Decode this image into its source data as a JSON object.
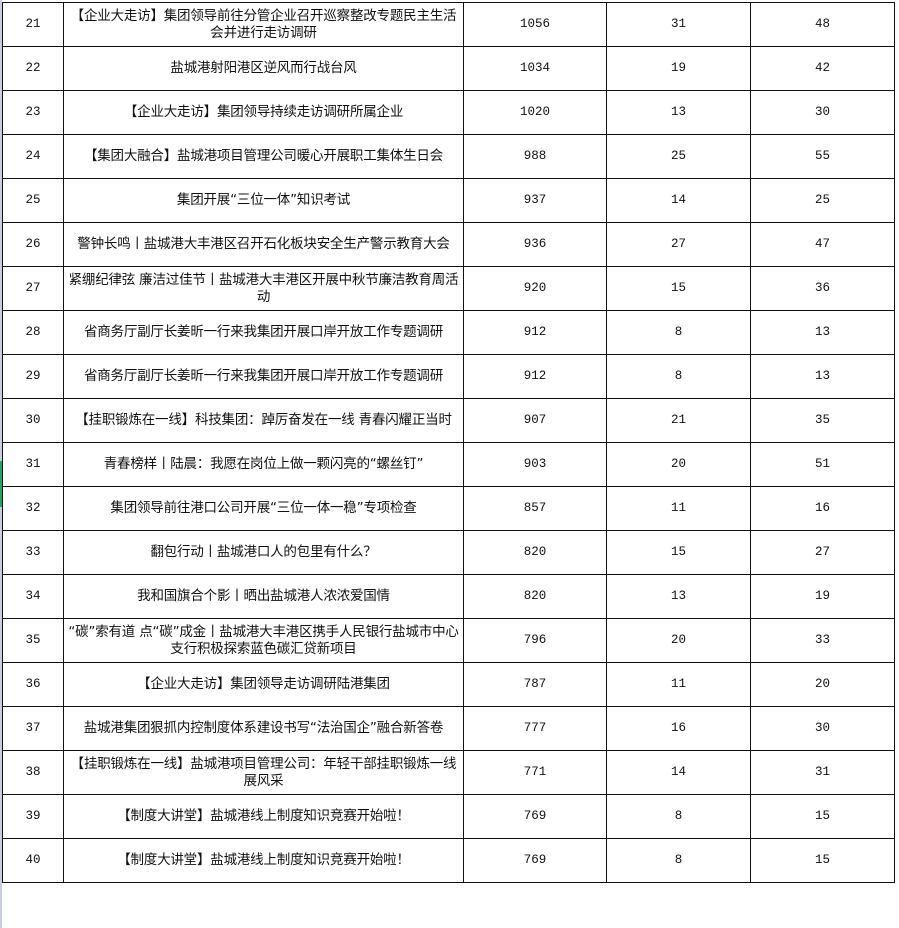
{
  "sheet": {
    "selected_row": "31",
    "accent_color": "#1aa862",
    "rows": [
      {
        "index": "21",
        "title": "【企业大走访】集团领导前往分管企业召开巡察整改专题民主生活会并进行走访调研",
        "views": "1056",
        "c2": "31",
        "c3": "48"
      },
      {
        "index": "22",
        "title": "盐城港射阳港区逆风而行战台风",
        "views": "1034",
        "c2": "19",
        "c3": "42"
      },
      {
        "index": "23",
        "title": "【企业大走访】集团领导持续走访调研所属企业",
        "views": "1020",
        "c2": "13",
        "c3": "30"
      },
      {
        "index": "24",
        "title": "【集团大融合】盐城港项目管理公司暖心开展职工集体生日会",
        "views": "988",
        "c2": "25",
        "c3": "55"
      },
      {
        "index": "25",
        "title": "集团开展“三位一体”知识考试",
        "views": "937",
        "c2": "14",
        "c3": "25"
      },
      {
        "index": "26",
        "title": "警钟长鸣丨盐城港大丰港区召开石化板块安全生产警示教育大会",
        "views": "936",
        "c2": "27",
        "c3": "47"
      },
      {
        "index": "27",
        "title": "紧绷纪律弦  廉洁过佳节丨盐城港大丰港区开展中秋节廉洁教育周活动",
        "views": "920",
        "c2": "15",
        "c3": "36"
      },
      {
        "index": "28",
        "title": "省商务厅副厅长姜昕一行来我集团开展口岸开放工作专题调研",
        "views": "912",
        "c2": "8",
        "c3": "13"
      },
      {
        "index": "29",
        "title": "省商务厅副厅长姜昕一行来我集团开展口岸开放工作专题调研",
        "views": "912",
        "c2": "8",
        "c3": "13"
      },
      {
        "index": "30",
        "title": "【挂职锻炼在一线】科技集团：踔厉奋发在一线  青春闪耀正当时",
        "views": "907",
        "c2": "21",
        "c3": "35"
      },
      {
        "index": "31",
        "title": "青春榜样丨陆晨：我愿在岗位上做一颗闪亮的“螺丝钉”",
        "views": "903",
        "c2": "20",
        "c3": "51"
      },
      {
        "index": "32",
        "title": "集团领导前往港口公司开展“三位一体一稳”专项检查",
        "views": "857",
        "c2": "11",
        "c3": "16"
      },
      {
        "index": "33",
        "title": "翻包行动丨盐城港口人的包里有什么？",
        "views": "820",
        "c2": "15",
        "c3": "27"
      },
      {
        "index": "34",
        "title": "我和国旗合个影丨晒出盐城港人浓浓爱国情",
        "views": "820",
        "c2": "13",
        "c3": "19"
      },
      {
        "index": "35",
        "title": "“碳”索有道 点“碳”成金丨盐城港大丰港区携手人民银行盐城市中心支行积极探索蓝色碳汇贷新项目",
        "views": "796",
        "c2": "20",
        "c3": "33"
      },
      {
        "index": "36",
        "title": "【企业大走访】集团领导走访调研陆港集团",
        "views": "787",
        "c2": "11",
        "c3": "20"
      },
      {
        "index": "37",
        "title": "盐城港集团狠抓内控制度体系建设书写“法治国企”融合新答卷",
        "views": "777",
        "c2": "16",
        "c3": "30"
      },
      {
        "index": "38",
        "title": "【挂职锻炼在一线】盐城港项目管理公司：年轻干部挂职锻炼一线展风采",
        "views": "771",
        "c2": "14",
        "c3": "31"
      },
      {
        "index": "39",
        "title": "【制度大讲堂】盐城港线上制度知识竞赛开始啦！",
        "views": "769",
        "c2": "8",
        "c3": "15"
      },
      {
        "index": "40",
        "title": "【制度大讲堂】盐城港线上制度知识竞赛开始啦！",
        "views": "769",
        "c2": "8",
        "c3": "15"
      }
    ]
  }
}
